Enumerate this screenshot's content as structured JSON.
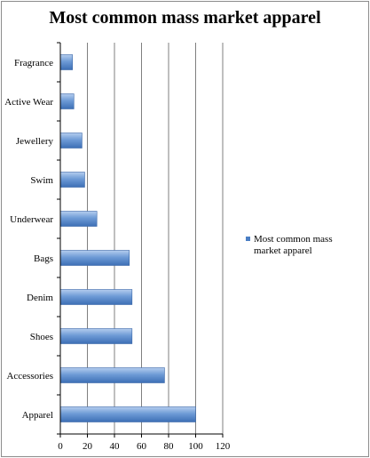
{
  "chart_data": {
    "type": "bar",
    "orientation": "horizontal",
    "title": "Most common mass market apparel",
    "categories": [
      "Apparel",
      "Accessories",
      "Shoes",
      "Denim",
      "Bags",
      "Underwear",
      "Swim",
      "Jewellery",
      "Active Wear",
      "Fragrance"
    ],
    "series": [
      {
        "name": "Most common mass market apparel",
        "values": [
          100,
          77,
          53,
          53,
          51,
          27,
          18,
          16,
          10,
          9
        ],
        "color": "#4a7ec4"
      }
    ],
    "xlim": [
      0,
      120
    ],
    "xticks": [
      0,
      20,
      40,
      60,
      80,
      100,
      120
    ],
    "grid": "vertical",
    "legend": "right",
    "xlabel": "",
    "ylabel": ""
  }
}
